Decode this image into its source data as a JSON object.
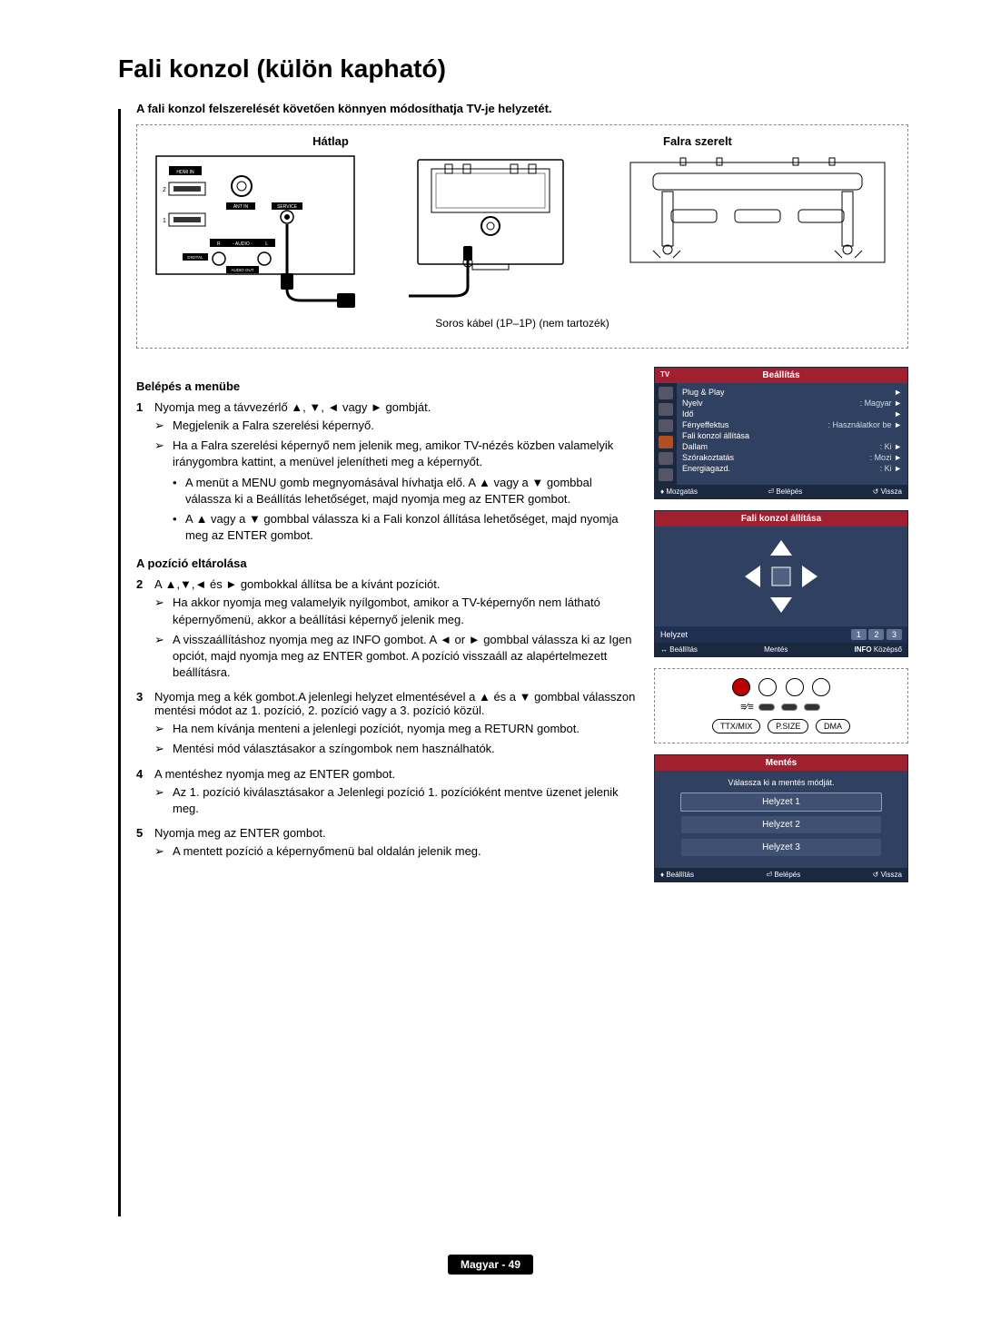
{
  "title": "Fali konzol (külön kapható)",
  "intro": "A fali konzol felszerelését követően könnyen módosíthatja TV-je helyzetét.",
  "diagram": {
    "left_label": "Hátlap",
    "right_label": "Falra szerelt",
    "cable_label": "Soros kábel (1P–1P) (nem tartozék)",
    "port_hdmi": "HDMI IN",
    "port_antin": "ANT IN",
    "port_service": "SERVICE",
    "port_audio_r": "R",
    "port_audio_l": "L",
    "port_audio": "- AUDIO -",
    "port_digital": "DIGITAL",
    "port_audio_out": "AUDIO OUT"
  },
  "sections": {
    "enter_menu": "Belépés a menübe",
    "save_pos": "A pozíció eltárolása"
  },
  "steps": {
    "s1_main": "Nyomja meg a távvezérlő ▲, ▼, ◄ vagy ► gombját.",
    "s1_a": "Megjelenik a Falra szerelési képernyő.",
    "s1_b": "Ha a Falra szerelési képernyő nem jelenik meg, amikor TV-nézés közben valamelyik iránygombra kattint, a menüvel jelenítheti meg a képernyőt.",
    "s1_b1": "A menüt a MENU gomb megnyomásával hívhatja elő. A ▲ vagy a ▼ gombbal válassza ki a Beállítás lehetőséget, majd nyomja meg az ENTER gombot.",
    "s1_b2": "A ▲ vagy a ▼ gombbal válassza ki a Fali konzol állítása lehetőséget, majd nyomja meg az ENTER gombot.",
    "s2_main": "A ▲,▼,◄ és ► gombokkal állítsa be a kívánt pozíciót.",
    "s2_a": "Ha akkor nyomja meg valamelyik nyílgombot, amikor a TV-képernyőn nem látható képernyőmenü, akkor a beállítási képernyő jelenik meg.",
    "s2_b": "A visszaállításhoz nyomja meg az INFO gombot. A ◄ or ► gombbal válassza ki az Igen opciót, majd nyomja meg az ENTER gombot. A pozíció visszaáll az alapértelmezett beállításra.",
    "s3_main": "Nyomja meg a kék gombot.A jelenlegi helyzet elmentésével a ▲ és a ▼ gombbal válasszon mentési módot az 1. pozíció, 2. pozíció vagy a 3. pozíció közül.",
    "s3_a": "Ha nem kívánja menteni a jelenlegi pozíciót, nyomja meg a RETURN gombot.",
    "s3_b": "Mentési mód választásakor a színgombok nem használhatók.",
    "s4_main": "A mentéshez nyomja meg az ENTER gombot.",
    "s4_a": "Az 1. pozíció kiválasztásakor a Jelenlegi pozíció 1. pozícióként mentve üzenet jelenik meg.",
    "s5_main": "Nyomja meg az ENTER gombot.",
    "s5_a": "A mentett pozíció a képernyőmenü bal oldalán jelenik meg."
  },
  "osd1": {
    "tv": "TV",
    "title": "Beállítás",
    "rows": [
      {
        "k": "Plug & Play",
        "v": "",
        "arr": "►"
      },
      {
        "k": "Nyelv",
        "v": ": Magyar",
        "arr": "►"
      },
      {
        "k": "Idő",
        "v": "",
        "arr": "►"
      },
      {
        "k": "Fényeffektus",
        "v": ": Használatkor be",
        "arr": "►"
      },
      {
        "k": "Fali konzol állítása",
        "v": "",
        "arr": ""
      },
      {
        "k": "Dallam",
        "v": ": Ki",
        "arr": "►"
      },
      {
        "k": "Szórakoztatás",
        "v": ": Mozi",
        "arr": "►"
      },
      {
        "k": "Energiagazd.",
        "v": ": Ki",
        "arr": "►"
      }
    ],
    "foot_move": "Mozgatás",
    "foot_enter": "Belépés",
    "foot_return": "Vissza"
  },
  "osd2": {
    "title": "Fali konzol állítása",
    "pos_label": "Helyzet",
    "pos_1": "1",
    "pos_2": "2",
    "pos_3": "3",
    "foot_set": "Beállítás",
    "foot_save": "Mentés",
    "foot_info": "INFO",
    "foot_center": "Középső"
  },
  "remote": {
    "btn1": "TTX/MIX",
    "btn2": "P.SIZE",
    "btn3": "DMA"
  },
  "osd3": {
    "title": "Mentés",
    "prompt": "Válassza ki a mentés módját.",
    "h1": "Helyzet 1",
    "h2": "Helyzet 2",
    "h3": "Helyzet 3",
    "foot_set": "Beállítás",
    "foot_enter": "Belépés",
    "foot_return": "Vissza"
  },
  "footer": "Magyar - 49",
  "colors": {
    "osd_bg": "#304060",
    "osd_header": "#a02030",
    "osd_dark": "#1a2840"
  }
}
